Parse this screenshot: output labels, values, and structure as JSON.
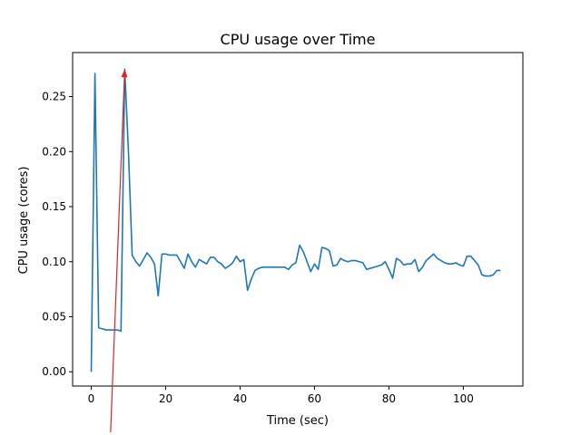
{
  "chart_data": {
    "type": "line",
    "title": "CPU usage over Time",
    "xlabel": "Time (sec)",
    "ylabel": "CPU usage (cores)",
    "xlim": [
      -5,
      116
    ],
    "ylim": [
      -0.013,
      0.29
    ],
    "xticks": [
      "0",
      "20",
      "40",
      "60",
      "80",
      "100"
    ],
    "yticks": [
      "0.00",
      "0.05",
      "0.10",
      "0.15",
      "0.20",
      "0.25"
    ],
    "grid": false,
    "series_color": "#1f77b4",
    "annotation_color": "#d62728",
    "series": [
      {
        "x": [
          0,
          1,
          2,
          3,
          4,
          5,
          6,
          7,
          8,
          9,
          10,
          11,
          12,
          13,
          14,
          15,
          16,
          17,
          18,
          19,
          20,
          21,
          22,
          23,
          24,
          25,
          26,
          27,
          28,
          29,
          30,
          31,
          32,
          33,
          34,
          35,
          36,
          37,
          38,
          39,
          40,
          41,
          42,
          43,
          44,
          45,
          46,
          47,
          48,
          49,
          50,
          51,
          52,
          53,
          54,
          55,
          56,
          57,
          58,
          59,
          60,
          61,
          62,
          63,
          64,
          65,
          66,
          67,
          68,
          69,
          70,
          71,
          72,
          73,
          74,
          75,
          76,
          77,
          78,
          79,
          80,
          81,
          82,
          83,
          84,
          85,
          86,
          87,
          88,
          89,
          90,
          91,
          92,
          93,
          94,
          95,
          96,
          97,
          98,
          99,
          100,
          101,
          102,
          103,
          104,
          105,
          106,
          107,
          108,
          109,
          110
        ],
        "values": [
          0.0,
          0.271,
          0.04,
          0.039,
          0.038,
          0.038,
          0.038,
          0.038,
          0.037,
          0.275,
          0.2,
          0.106,
          0.1,
          0.096,
          0.102,
          0.108,
          0.104,
          0.098,
          0.069,
          0.107,
          0.107,
          0.106,
          0.106,
          0.106,
          0.1,
          0.094,
          0.107,
          0.1,
          0.095,
          0.102,
          0.1,
          0.098,
          0.104,
          0.104,
          0.1,
          0.098,
          0.094,
          0.096,
          0.099,
          0.105,
          0.1,
          0.102,
          0.074,
          0.084,
          0.092,
          0.094,
          0.095,
          0.095,
          0.095,
          0.095,
          0.095,
          0.095,
          0.095,
          0.093,
          0.097,
          0.099,
          0.115,
          0.109,
          0.1,
          0.091,
          0.098,
          0.093,
          0.113,
          0.112,
          0.11,
          0.096,
          0.097,
          0.103,
          0.101,
          0.1,
          0.101,
          0.101,
          0.1,
          0.099,
          0.093,
          0.094,
          0.095,
          0.096,
          0.097,
          0.1,
          0.093,
          0.085,
          0.103,
          0.101,
          0.097,
          0.098,
          0.098,
          0.102,
          0.091,
          0.095,
          0.101,
          0.104,
          0.107,
          0.103,
          0.101,
          0.099,
          0.098,
          0.098,
          0.099,
          0.097,
          0.096,
          0.105,
          0.105,
          0.101,
          0.097,
          0.088,
          0.087,
          0.087,
          0.088,
          0.092,
          0.092
        ]
      }
    ],
    "annotation": {
      "arrow_from": [
        5.2,
        -0.055
      ],
      "arrow_to": [
        9,
        0.275
      ]
    }
  }
}
